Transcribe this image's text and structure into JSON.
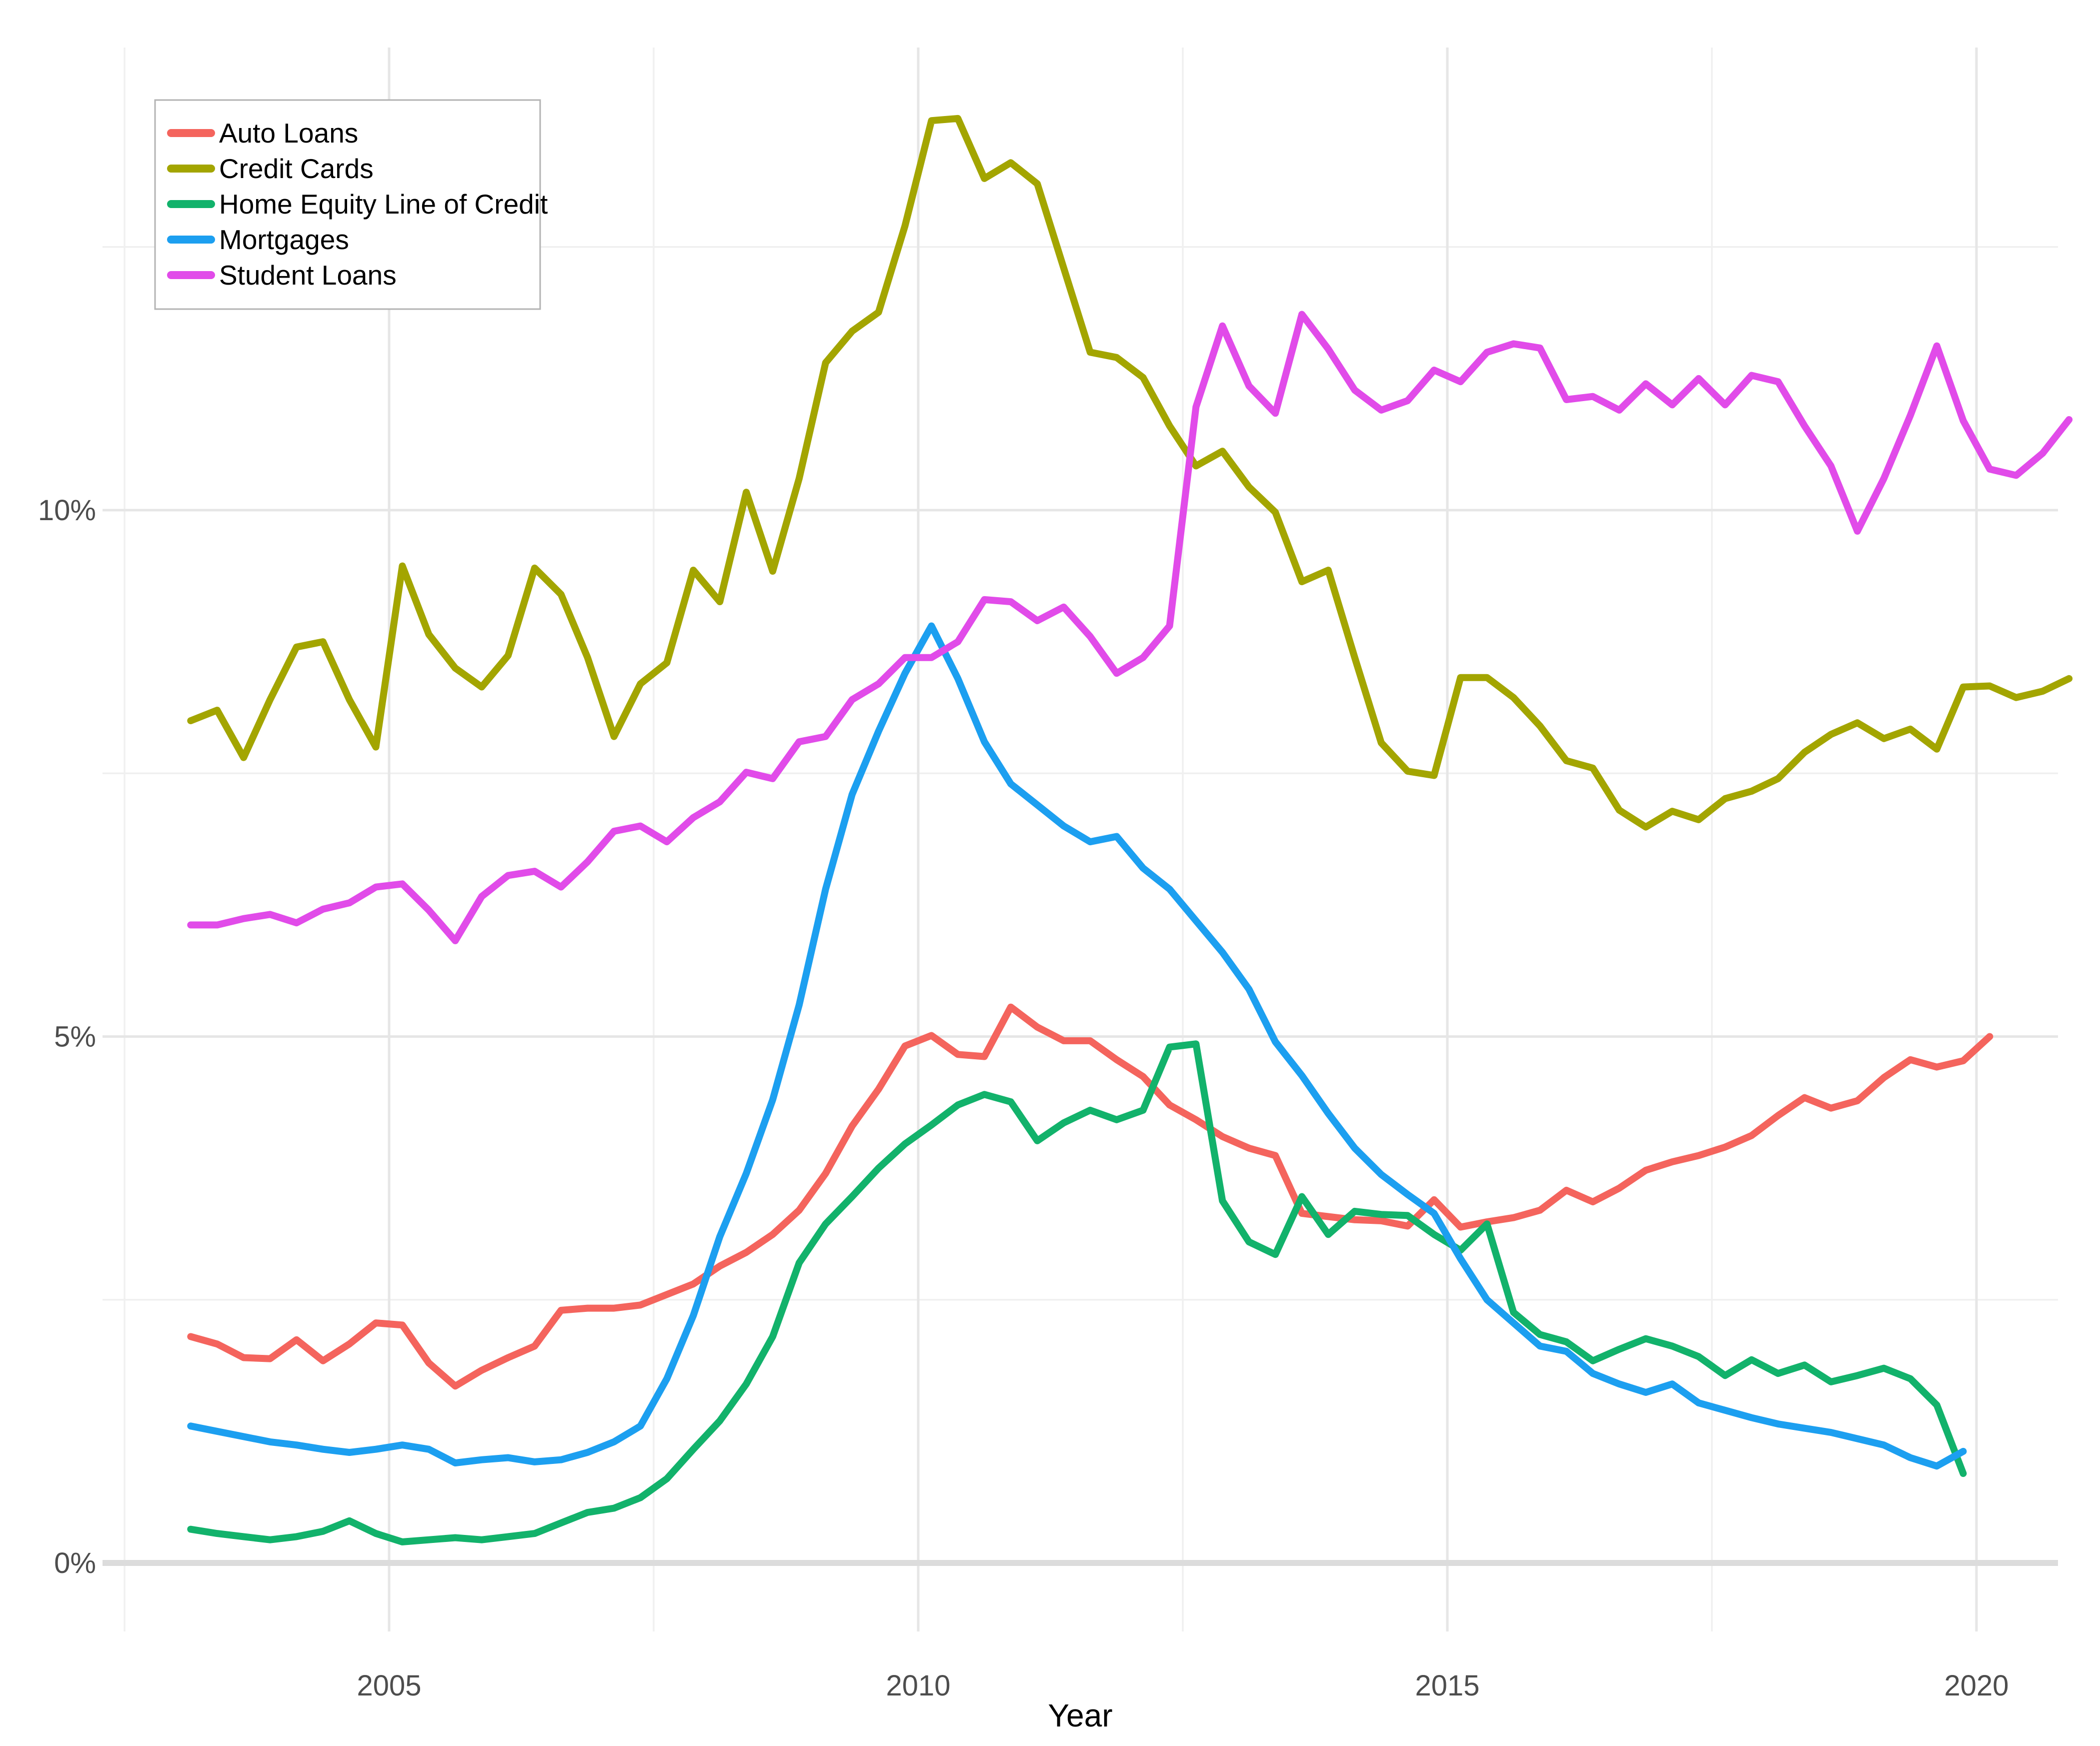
{
  "chart_data": {
    "type": "line",
    "title": "",
    "xlabel": "Year",
    "ylabel": "",
    "grid": true,
    "legend_position": "inside-top-left",
    "x_axis": {
      "major_ticks": [
        2005,
        2010,
        2015,
        2020
      ],
      "major_tick_labels": [
        "2005",
        "2010",
        "2015",
        "2020"
      ],
      "minor_ticks": [
        2002.5,
        2007.5,
        2012.5,
        2017.5
      ],
      "range": [
        2002.29,
        2020.77
      ]
    },
    "y_axis": {
      "major_ticks": [
        0,
        5,
        10
      ],
      "major_tick_labels": [
        "0%",
        "5%",
        "10%"
      ],
      "minor_ticks": [
        2.5,
        7.5,
        12.5
      ],
      "range": [
        -0.65,
        14.4
      ],
      "format": "percent"
    },
    "x_start": 2003.125,
    "x_step": 0.25,
    "series": [
      {
        "name": "Auto Loans",
        "color": "#F4645D",
        "values": [
          2.15,
          2.08,
          1.95,
          1.94,
          2.12,
          1.92,
          2.08,
          2.28,
          2.26,
          1.9,
          1.68,
          1.83,
          1.95,
          2.06,
          2.4,
          2.42,
          2.42,
          2.45,
          2.55,
          2.65,
          2.82,
          2.95,
          3.12,
          3.35,
          3.7,
          4.15,
          4.5,
          4.91,
          5.01,
          4.83,
          4.81,
          5.28,
          5.09,
          4.96,
          4.96,
          4.78,
          4.62,
          4.35,
          4.21,
          4.05,
          3.94,
          3.87,
          3.32,
          3.29,
          3.26,
          3.25,
          3.2,
          3.45,
          3.19,
          3.24,
          3.28,
          3.35,
          3.54,
          3.43,
          3.56,
          3.73,
          3.81,
          3.87,
          3.95,
          4.06,
          4.25,
          4.42,
          4.32,
          4.39,
          4.61,
          4.78,
          4.71,
          4.77,
          5.0
        ]
      },
      {
        "name": "Credit Cards",
        "color": "#A3A500",
        "values": [
          8.0,
          8.1,
          7.65,
          8.2,
          8.7,
          8.75,
          8.2,
          7.75,
          9.47,
          8.82,
          8.5,
          8.32,
          8.62,
          9.45,
          9.2,
          8.6,
          7.85,
          8.35,
          8.55,
          9.43,
          9.13,
          10.17,
          9.42,
          10.3,
          11.4,
          11.7,
          11.88,
          12.7,
          13.7,
          13.72,
          13.15,
          13.3,
          13.1,
          12.3,
          11.5,
          11.45,
          11.26,
          10.8,
          10.42,
          10.56,
          10.22,
          9.98,
          9.32,
          9.43,
          8.6,
          7.79,
          7.52,
          7.48,
          8.41,
          8.41,
          8.22,
          7.95,
          7.62,
          7.55,
          7.15,
          6.99,
          7.14,
          7.06,
          7.26,
          7.33,
          7.45,
          7.7,
          7.87,
          7.98,
          7.83,
          7.92,
          7.73,
          8.32,
          8.33,
          8.22,
          8.28,
          8.4
        ]
      },
      {
        "name": "Home Equity Line of Credit",
        "color": "#12B26B",
        "values": [
          0.32,
          0.28,
          0.25,
          0.22,
          0.25,
          0.3,
          0.4,
          0.28,
          0.2,
          0.22,
          0.24,
          0.22,
          0.25,
          0.28,
          0.38,
          0.48,
          0.52,
          0.62,
          0.8,
          1.08,
          1.35,
          1.7,
          2.15,
          2.85,
          3.22,
          3.48,
          3.75,
          3.98,
          4.16,
          4.35,
          4.45,
          4.38,
          4.01,
          4.18,
          4.3,
          4.21,
          4.3,
          4.9,
          4.93,
          3.44,
          3.05,
          2.93,
          3.48,
          3.12,
          3.34,
          3.31,
          3.3,
          3.12,
          2.97,
          3.22,
          2.38,
          2.17,
          2.1,
          1.92,
          2.03,
          2.13,
          2.06,
          1.96,
          1.78,
          1.93,
          1.8,
          1.88,
          1.72,
          1.78,
          1.85,
          1.75,
          1.5,
          0.85
        ]
      },
      {
        "name": "Mortgages",
        "color": "#1C9FF0",
        "values": [
          1.3,
          1.25,
          1.2,
          1.15,
          1.12,
          1.08,
          1.05,
          1.08,
          1.12,
          1.08,
          0.95,
          0.98,
          1.0,
          0.96,
          0.98,
          1.05,
          1.15,
          1.3,
          1.75,
          2.35,
          3.1,
          3.7,
          4.4,
          5.3,
          6.4,
          7.3,
          7.9,
          8.45,
          8.9,
          8.4,
          7.8,
          7.4,
          7.2,
          7.0,
          6.85,
          6.9,
          6.6,
          6.4,
          6.1,
          5.8,
          5.45,
          4.95,
          4.63,
          4.27,
          3.94,
          3.69,
          3.5,
          3.32,
          2.89,
          2.5,
          2.28,
          2.06,
          2.01,
          1.8,
          1.7,
          1.62,
          1.7,
          1.52,
          1.45,
          1.38,
          1.32,
          1.28,
          1.24,
          1.18,
          1.12,
          1.0,
          0.92,
          1.06
        ]
      },
      {
        "name": "Student Loans",
        "color": "#E14BE9",
        "values": [
          6.06,
          6.06,
          6.12,
          6.16,
          6.08,
          6.21,
          6.27,
          6.42,
          6.45,
          6.2,
          5.91,
          6.33,
          6.53,
          6.57,
          6.42,
          6.66,
          6.95,
          7.0,
          6.85,
          7.08,
          7.23,
          7.51,
          7.45,
          7.8,
          7.85,
          8.2,
          8.35,
          8.6,
          8.6,
          8.75,
          9.15,
          9.13,
          8.95,
          9.08,
          8.8,
          8.45,
          8.6,
          8.9,
          10.98,
          11.75,
          11.18,
          10.92,
          11.86,
          11.53,
          11.14,
          10.95,
          11.04,
          11.33,
          11.22,
          11.5,
          11.58,
          11.54,
          11.05,
          11.08,
          10.95,
          11.2,
          11.0,
          11.25,
          11.0,
          11.28,
          11.22,
          10.8,
          10.42,
          9.8,
          10.3,
          10.9,
          11.56,
          10.85,
          10.39,
          10.33,
          10.54,
          10.86
        ]
      }
    ]
  },
  "legend": {
    "items": [
      {
        "label": "Auto Loans",
        "color": "#F4645D"
      },
      {
        "label": "Credit Cards",
        "color": "#A3A500"
      },
      {
        "label": "Home Equity Line of Credit",
        "color": "#12B26B"
      },
      {
        "label": "Mortgages",
        "color": "#1C9FF0"
      },
      {
        "label": "Student Loans",
        "color": "#E14BE9"
      }
    ]
  },
  "axes": {
    "x_title": "Year",
    "x_tick_labels": [
      "2005",
      "2010",
      "2015",
      "2020"
    ],
    "y_tick_labels": [
      "0%",
      "5%",
      "10%"
    ]
  },
  "style_colors": {
    "grid_major": "#E6E6E6",
    "grid_minor": "#F0F0F0",
    "zero_line": "#DCDCDC",
    "axis_text": "#4D4D4D",
    "axis_title": "#000000",
    "legend_border": "#B3B3B3",
    "background": "#FFFFFF"
  }
}
